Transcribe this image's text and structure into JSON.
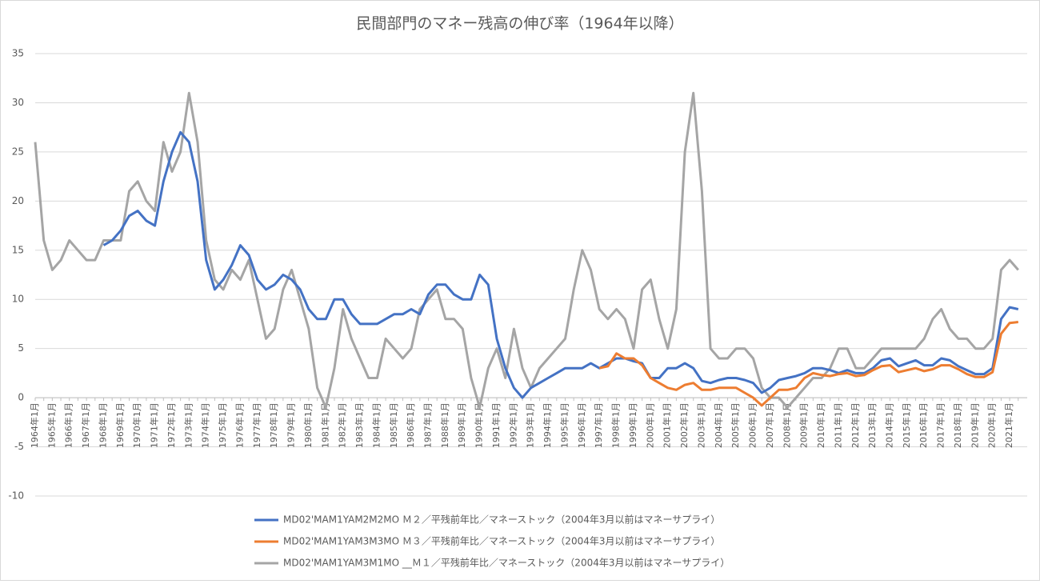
{
  "chart_data": {
    "type": "line",
    "title": "民間部門のマネー残高の伸び率（1964年以降）",
    "ylim": [
      -10,
      35
    ],
    "yticks": [
      -10,
      -5,
      0,
      5,
      10,
      15,
      20,
      25,
      30,
      35
    ],
    "grid": true,
    "legend": "bottom",
    "categories": [
      "1964年1月",
      null,
      "1965年1月",
      null,
      "1966年1月",
      null,
      "1967年1月",
      null,
      "1968年1月",
      null,
      "1969年1月",
      null,
      "1970年1月",
      null,
      "1971年1月",
      null,
      "1972年1月",
      null,
      "1973年1月",
      null,
      "1974年1月",
      null,
      "1975年1月",
      null,
      "1976年1月",
      null,
      "1977年1月",
      null,
      "1978年1月",
      null,
      "1979年1月",
      null,
      "1980年1月",
      null,
      "1981年1月",
      null,
      "1982年1月",
      null,
      "1983年1月",
      null,
      "1984年1月",
      null,
      "1985年1月",
      null,
      "1986年1月",
      null,
      "1987年1月",
      null,
      "1988年1月",
      null,
      "1989年1月",
      null,
      "1990年1月",
      null,
      "1991年1月",
      null,
      "1992年1月",
      null,
      "1993年1月",
      null,
      "1994年1月",
      null,
      "1995年1月",
      null,
      "1996年1月",
      null,
      "1997年1月",
      null,
      "1998年1月",
      null,
      "1999年1月",
      null,
      "2000年1月",
      null,
      "2001年1月",
      null,
      "2002年1月",
      null,
      "2003年1月",
      null,
      "2004年1月",
      null,
      "2005年1月",
      null,
      "2006年1月",
      null,
      "2007年1月",
      null,
      "2008年1月",
      null,
      "2009年1月",
      null,
      "2010年1月",
      null,
      "2011年1月",
      null,
      "2012年1月",
      null,
      "2013年1月",
      null,
      "2014年1月",
      null,
      "2015年1月",
      null,
      "2016年1月",
      null,
      "2017年1月",
      null,
      "2018年1月",
      null,
      "2019年1月",
      null,
      "2020年1月",
      null,
      "2021年1月",
      null
    ],
    "series": [
      {
        "name": "MD02'MAM1YAM2M2MO Ｍ２／平残前年比／マネーストック（2004年3月以前はマネーサプライ）",
        "color": "#4472c4",
        "values": [
          null,
          null,
          null,
          null,
          null,
          null,
          null,
          null,
          15.5,
          16,
          17,
          18.5,
          19,
          18,
          17.5,
          22,
          25,
          27,
          26,
          22,
          14,
          11,
          12,
          13.5,
          15.5,
          14.5,
          12,
          11,
          11.5,
          12.5,
          12,
          11,
          9,
          8,
          8,
          10,
          10,
          8.5,
          7.5,
          7.5,
          7.5,
          8,
          8.5,
          8.5,
          9,
          8.5,
          10.5,
          11.5,
          11.5,
          10.5,
          10,
          10,
          12.5,
          11.5,
          6,
          3,
          1,
          0,
          1,
          1.5,
          2,
          2.5,
          3,
          3,
          3,
          3.5,
          3,
          3.5,
          4,
          4,
          3.7,
          3.5,
          2,
          2,
          3,
          3,
          3.5,
          3,
          1.7,
          1.5,
          1.8,
          2,
          2,
          1.8,
          1.5,
          0.5,
          1,
          1.8,
          2,
          2.2,
          2.5,
          3,
          3,
          2.8,
          2.5,
          2.8,
          2.5,
          2.5,
          3,
          3.8,
          4,
          3.2,
          3.5,
          3.8,
          3.3,
          3.3,
          4,
          3.8,
          3.2,
          2.8,
          2.4,
          2.4,
          3,
          8,
          9.2,
          9
        ]
      },
      {
        "name": "MD02'MAM1YAM3M3MO Ｍ３／平残前年比／マネーストック（2004年3月以前はマネーサプライ）",
        "color": "#ed7d31",
        "values": [
          null,
          null,
          null,
          null,
          null,
          null,
          null,
          null,
          null,
          null,
          null,
          null,
          null,
          null,
          null,
          null,
          null,
          null,
          null,
          null,
          null,
          null,
          null,
          null,
          null,
          null,
          null,
          null,
          null,
          null,
          null,
          null,
          null,
          null,
          null,
          null,
          null,
          null,
          null,
          null,
          null,
          null,
          null,
          null,
          null,
          null,
          null,
          null,
          null,
          null,
          null,
          null,
          null,
          null,
          null,
          null,
          null,
          null,
          null,
          null,
          null,
          null,
          null,
          null,
          null,
          null,
          3,
          3.2,
          4.5,
          4,
          4,
          3.3,
          2,
          1.5,
          1,
          0.8,
          1.3,
          1.5,
          0.8,
          0.8,
          1,
          1,
          1,
          0.5,
          0,
          -0.8,
          0,
          0.8,
          0.8,
          1,
          2,
          2.5,
          2.3,
          2.2,
          2.4,
          2.5,
          2.2,
          2.3,
          2.8,
          3.2,
          3.3,
          2.6,
          2.8,
          3,
          2.7,
          2.9,
          3.3,
          3.3,
          2.9,
          2.4,
          2.1,
          2.1,
          2.6,
          6.5,
          7.6,
          7.7
        ]
      },
      {
        "name": "MD02'MAM1YAM3M1MO __Ｍ１／平残前年比／マネーストック（2004年3月以前はマネーサプライ）",
        "color": "#a5a5a5",
        "values": [
          26,
          16,
          13,
          14,
          16,
          15,
          14,
          14,
          16,
          16,
          16,
          21,
          22,
          20,
          19,
          26,
          23,
          25,
          31,
          26,
          16,
          12,
          11,
          13,
          12,
          14,
          10,
          6,
          7,
          11,
          13,
          10,
          7,
          1,
          -1,
          3,
          9,
          6,
          4,
          2,
          2,
          6,
          5,
          4,
          5,
          9,
          10,
          11,
          8,
          8,
          7,
          2,
          -1,
          3,
          5,
          2,
          7,
          3,
          1,
          3,
          4,
          5,
          6,
          11,
          15,
          13,
          9,
          8,
          9,
          8,
          5,
          11,
          12,
          8,
          5,
          9,
          25,
          31,
          21,
          5,
          4,
          4,
          5,
          5,
          4,
          1,
          0,
          0,
          -1,
          0,
          1,
          2,
          2,
          3,
          5,
          5,
          3,
          3,
          4,
          5,
          5,
          5,
          5,
          5,
          6,
          8,
          9,
          7,
          6,
          6,
          5,
          5,
          6,
          13,
          14,
          13
        ]
      }
    ]
  }
}
